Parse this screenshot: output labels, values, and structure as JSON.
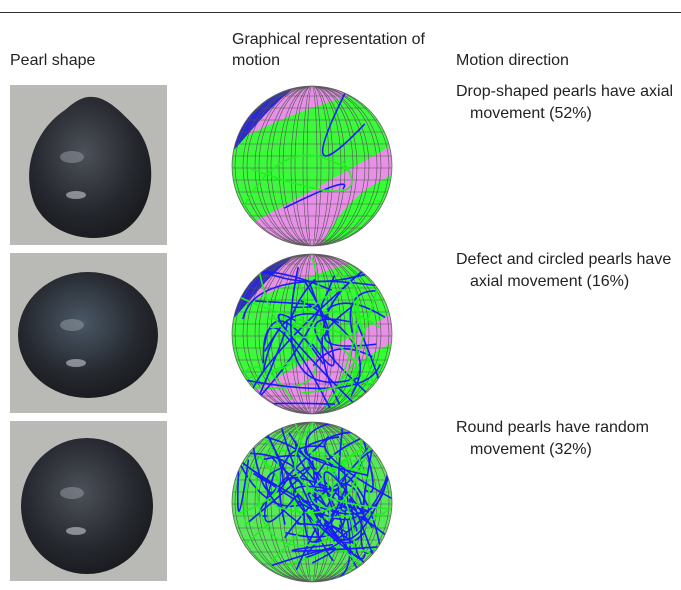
{
  "header": [
    "Pearl shape",
    "Graphical representation of motion",
    "Motion direction"
  ],
  "rows": [
    {
      "motion_direction": "Drop-shaped pearls have axial movement (52%)"
    },
    {
      "motion_direction": "Defect and circled pearls have axial movement (16%)"
    },
    {
      "motion_direction": "Round pearls have random movement (32%)"
    }
  ]
}
